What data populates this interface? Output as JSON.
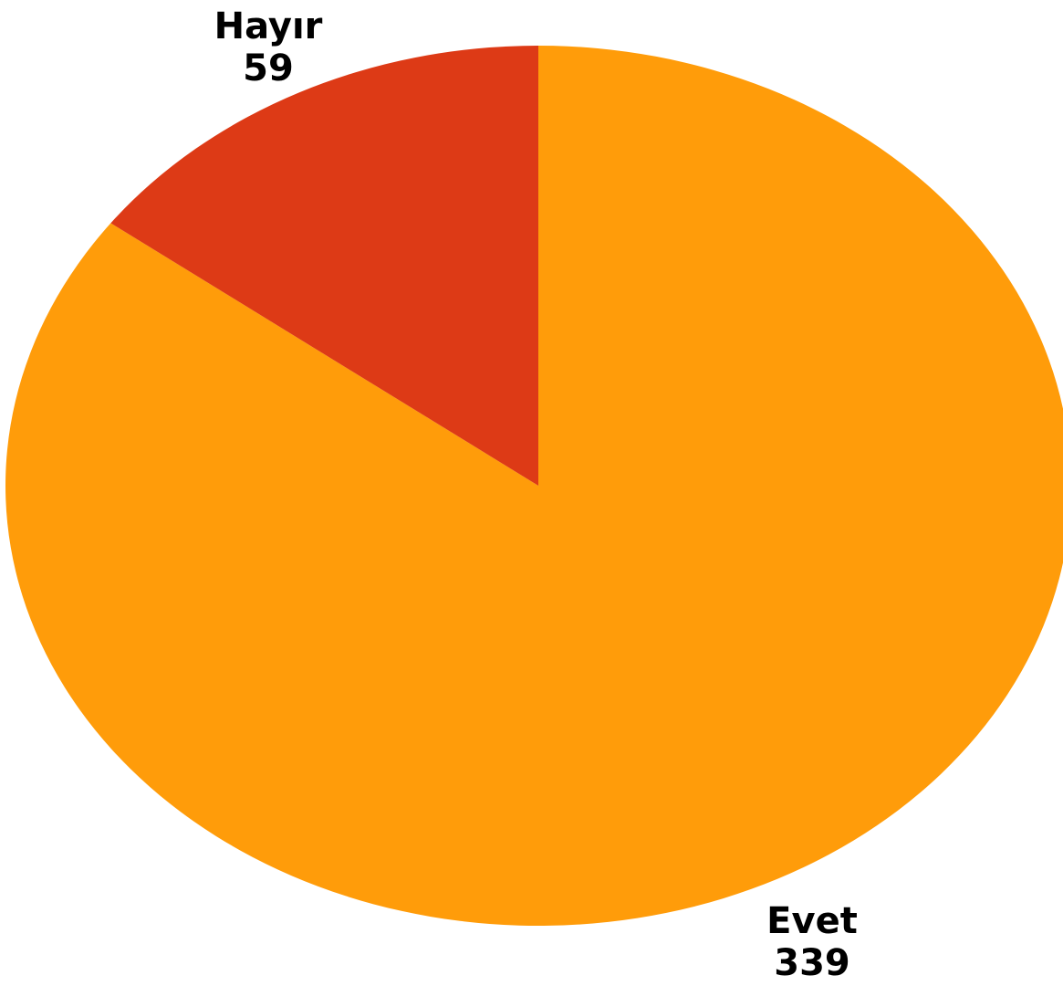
{
  "chart_data": {
    "type": "pie",
    "title": "",
    "labels": [
      "Evet",
      "Hayır"
    ],
    "values": [
      339,
      59
    ],
    "colors": [
      "#ff9c0a",
      "#dd3a16"
    ],
    "start": "12 o'clock",
    "direction": "clockwise",
    "legend": "none",
    "data_labels": "category and value"
  }
}
